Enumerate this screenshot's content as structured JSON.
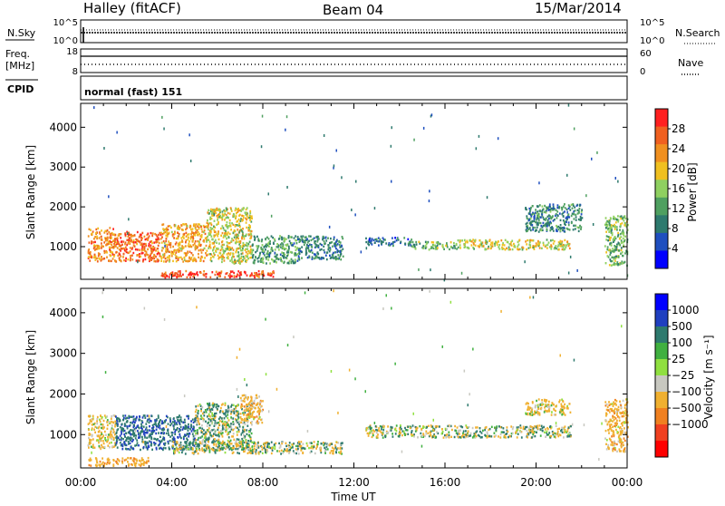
{
  "header": {
    "radar": "Halley (fitACF)",
    "beam": "Beam 04",
    "date": "15/Mar/2014"
  },
  "status": {
    "nsky_label": "N.Sky",
    "nsky_ticks": [
      "10^5",
      "10^0"
    ],
    "nsearch_label": "N.Search",
    "nsearch_ticks": [
      "10^5",
      "10^0"
    ],
    "freq_label": "Freq.",
    "freq_unit": "[MHz]",
    "freq_ticks": [
      "18",
      "8"
    ],
    "nave_label": "Nave",
    "nave_ticks": [
      "60",
      "0"
    ],
    "cpid_label": "CPID",
    "cpid_value": "normal (fast) 151"
  },
  "chart_data": [
    {
      "type": "heatmap",
      "title": "",
      "parameter": "Power",
      "ylabel": "Slant Range [km]",
      "xlabel": "",
      "x_ticks": [
        "00:00",
        "04:00",
        "08:00",
        "12:00",
        "16:00",
        "20:00",
        "00:00"
      ],
      "x_range_hours": [
        0,
        24
      ],
      "y_ticks": [
        1000,
        2000,
        3000,
        4000
      ],
      "ylim": [
        180,
        4600
      ],
      "colorbar_label": "Power [dB]",
      "colorbar_ticks": [
        "4",
        "8",
        "12",
        "16",
        "20",
        "24",
        "28"
      ],
      "colorbar_range": [
        0,
        32
      ],
      "colors": [
        "#0000ff",
        "#1f4fbf",
        "#2e7a6e",
        "#4fa060",
        "#8fd060",
        "#f0c020",
        "#f09020",
        "#f06020",
        "#ff2020"
      ],
      "regions": [
        {
          "t0": 0.3,
          "t1": 1.5,
          "r0": 650,
          "r1": 1500,
          "level": 24
        },
        {
          "t0": 1.5,
          "t1": 3.5,
          "r0": 650,
          "r1": 1400,
          "level": 26
        },
        {
          "t0": 3.5,
          "t1": 5.5,
          "r0": 650,
          "r1": 1600,
          "level": 22
        },
        {
          "t0": 5.5,
          "t1": 7.5,
          "r0": 600,
          "r1": 2000,
          "level": 18
        },
        {
          "t0": 7.5,
          "t1": 9.5,
          "r0": 600,
          "r1": 1300,
          "level": 12
        },
        {
          "t0": 9.5,
          "t1": 11.5,
          "r0": 700,
          "r1": 1300,
          "level": 9
        },
        {
          "t0": 3.5,
          "t1": 8.5,
          "r0": 250,
          "r1": 420,
          "level": 28
        },
        {
          "t0": 12.5,
          "t1": 14.5,
          "r0": 1050,
          "r1": 1250,
          "level": 8
        },
        {
          "t0": 14.5,
          "t1": 16.5,
          "r0": 950,
          "r1": 1150,
          "level": 14
        },
        {
          "t0": 16.5,
          "t1": 21.5,
          "r0": 950,
          "r1": 1200,
          "level": 18
        },
        {
          "t0": 19.5,
          "t1": 22.0,
          "r0": 1400,
          "r1": 2100,
          "level": 10
        },
        {
          "t0": 23.0,
          "t1": 24.0,
          "r0": 550,
          "r1": 1800,
          "level": 14
        }
      ]
    },
    {
      "type": "heatmap",
      "title": "",
      "parameter": "Velocity",
      "ylabel": "Slant Range [km]",
      "xlabel": "Time UT",
      "x_ticks": [
        "00:00",
        "04:00",
        "08:00",
        "12:00",
        "16:00",
        "20:00",
        "00:00"
      ],
      "x_range_hours": [
        0,
        24
      ],
      "y_ticks": [
        1000,
        2000,
        3000,
        4000
      ],
      "ylim": [
        180,
        4600
      ],
      "colorbar_label": "Velocity [m s⁻¹]",
      "colorbar_ticks": [
        "1000",
        "500",
        "100",
        "25",
        "−25",
        "−100",
        "−500",
        "−1000"
      ],
      "colors": [
        "#0000ff",
        "#2040c0",
        "#2e7a6e",
        "#40b040",
        "#90e040",
        "#c8c8c0",
        "#f0b030",
        "#f08020",
        "#f04020",
        "#ff0000"
      ],
      "regions": [
        {
          "t0": 0.3,
          "t1": 1.5,
          "r0": 700,
          "r1": 1500,
          "level": -200
        },
        {
          "t0": 1.5,
          "t1": 5.0,
          "r0": 650,
          "r1": 1500,
          "level": 400
        },
        {
          "t0": 5.0,
          "t1": 7.5,
          "r0": 650,
          "r1": 1800,
          "level": 60
        },
        {
          "t0": 4.0,
          "t1": 11.5,
          "r0": 550,
          "r1": 850,
          "level": 0
        },
        {
          "t0": 7.0,
          "t1": 8.0,
          "r0": 1300,
          "r1": 2000,
          "level": -300
        },
        {
          "t0": 12.5,
          "t1": 21.5,
          "r0": 950,
          "r1": 1250,
          "level": 0
        },
        {
          "t0": 19.5,
          "t1": 21.5,
          "r0": 1500,
          "r1": 1900,
          "level": -200
        },
        {
          "t0": 23.0,
          "t1": 24.0,
          "r0": 600,
          "r1": 1900,
          "level": -300
        },
        {
          "t0": 0.3,
          "t1": 3.0,
          "r0": 250,
          "r1": 450,
          "level": -400
        }
      ]
    }
  ]
}
